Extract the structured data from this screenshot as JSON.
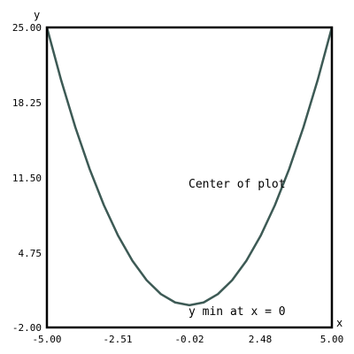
{
  "chart_data": {
    "type": "line",
    "xlabel": "x",
    "ylabel": "y",
    "xlim": [
      -5.0,
      5.0
    ],
    "ylim": [
      -2.0,
      25.0
    ],
    "x_ticks": [
      "-5.00",
      "-2.51",
      "-0.02",
      "2.48",
      "5.00"
    ],
    "y_ticks": [
      "25.00",
      "18.25",
      "11.50",
      "4.75",
      "-2.00"
    ],
    "grid": false,
    "series": [
      {
        "x": [
          -5.0,
          -4.5,
          -4.0,
          -3.5,
          -3.0,
          -2.5,
          -2.0,
          -1.5,
          -1.0,
          -0.5,
          0.0,
          0.5,
          1.0,
          1.5,
          2.0,
          2.5,
          3.0,
          3.5,
          4.0,
          4.5,
          5.0
        ],
        "y": [
          25.0,
          20.25,
          16.0,
          12.25,
          9.0,
          6.25,
          4.0,
          2.25,
          1.0,
          0.25,
          0.0,
          0.25,
          1.0,
          2.25,
          4.0,
          6.25,
          9.0,
          12.25,
          16.0,
          20.25,
          25.0
        ],
        "color": "#3d5a55"
      }
    ],
    "annotations": [
      {
        "text": "Center of plot",
        "x": 0.0,
        "y": 11.5
      },
      {
        "text": "y min at x = 0",
        "x": 0.0,
        "y": 0.0
      }
    ]
  }
}
